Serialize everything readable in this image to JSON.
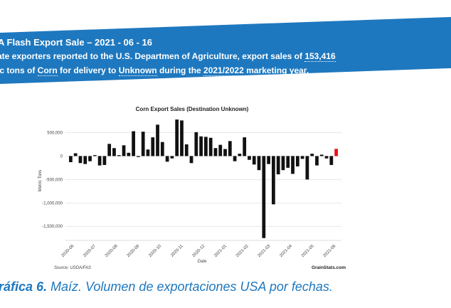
{
  "banner": {
    "title": "A Flash Export Sale – 2021 - 06 - 16",
    "line1_prefix": "ate exporters reported to the U.S. Departmen of Agriculture, export sales of ",
    "line1_amount": "153,416",
    "line2_prefix": "ic tons of ",
    "line2_commodity": "Corn",
    "line2_mid": " for delivery to ",
    "line2_destination": "Unknown",
    "line2_during": " during the ",
    "line2_year": "2021/2022",
    "line2_suffix": " marketing year."
  },
  "caption": {
    "label": "ráfica 6.",
    "text": " Maíz. Volumen de exportaciones USA por fechas."
  },
  "colors": {
    "banner": "#1e78bf",
    "bars": "#111111",
    "highlight_bar": "#e8101c",
    "caption": "#1e78bf"
  },
  "chart_data": {
    "type": "bar",
    "title": "Corn Export Sales (Destination Unknown)",
    "xlabel": "Date",
    "ylabel": "Metric Tons",
    "source": "Source: USDA/FAS",
    "brand": "GrainStats.com",
    "ylim": [
      -1800000,
      750000
    ],
    "yticks": [
      500000,
      0,
      -500000,
      -1000000,
      -1500000
    ],
    "ytick_labels": [
      "500,000",
      "0",
      "-500,000",
      "-1,000,000",
      "-1,500,000"
    ],
    "grid": true,
    "xtick_labels": [
      "2020-06",
      "2020-07",
      "2020-08",
      "2020-09",
      "2020-10",
      "2020-11",
      "2020-12",
      "2021-01",
      "2021-02",
      "2021-03",
      "2021-04",
      "2021-05",
      "2021-06"
    ],
    "values": [
      -130000,
      60000,
      -150000,
      -170000,
      -110000,
      20000,
      -200000,
      -190000,
      260000,
      170000,
      20000,
      230000,
      70000,
      530000,
      -20000,
      520000,
      140000,
      400000,
      670000,
      300000,
      -120000,
      -50000,
      780000,
      760000,
      250000,
      -150000,
      510000,
      420000,
      410000,
      390000,
      170000,
      240000,
      150000,
      320000,
      -110000,
      50000,
      400000,
      -80000,
      -180000,
      -300000,
      -1750000,
      -170000,
      -1030000,
      -390000,
      -300000,
      -250000,
      -380000,
      -220000,
      -60000,
      -500000,
      50000,
      -200000,
      30000,
      -50000,
      -190000,
      153416
    ],
    "highlight": "last bar"
  }
}
